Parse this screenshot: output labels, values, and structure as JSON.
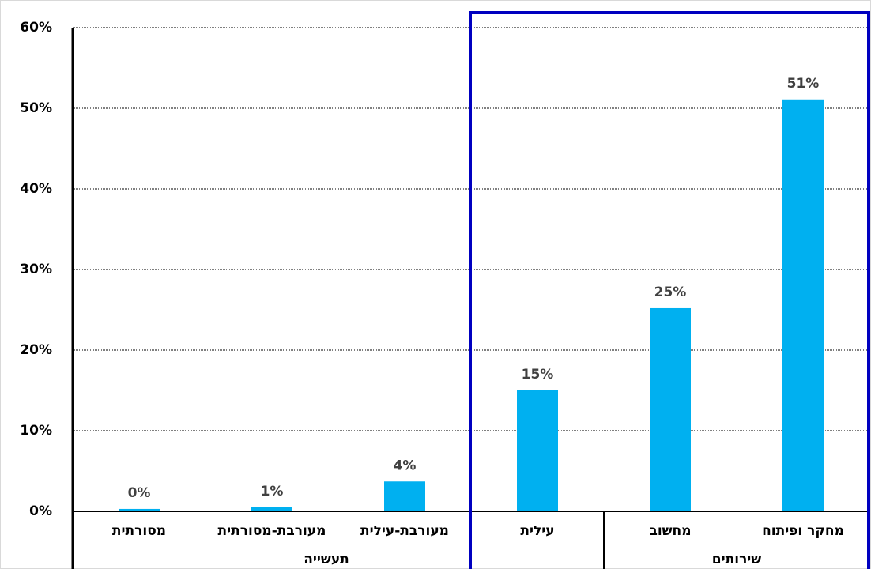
{
  "chart_data": {
    "type": "bar",
    "categories": [
      "מסורתית",
      "מעורבת-מסורתית",
      "מעורבת-עילית",
      "עילית",
      "מחשוב",
      "מחקר ופיתוח"
    ],
    "values": [
      0.3,
      0.5,
      3.7,
      15.0,
      25.2,
      51.1
    ],
    "value_labels": [
      "0%",
      "1%",
      "4%",
      "15%",
      "25%",
      "51%"
    ],
    "groups": [
      "תעשייה",
      "שירותים"
    ],
    "color": "#00b0f0",
    "ylim": [
      0,
      60
    ],
    "yticks": [
      {
        "value": 0,
        "label": "0%"
      },
      {
        "value": 10,
        "label": "10%"
      },
      {
        "value": 20,
        "label": "20%"
      },
      {
        "value": 30,
        "label": "30%"
      },
      {
        "value": 40,
        "label": "40%"
      },
      {
        "value": 50,
        "label": "50%"
      },
      {
        "value": 60,
        "label": "60%"
      }
    ],
    "grid": true
  }
}
